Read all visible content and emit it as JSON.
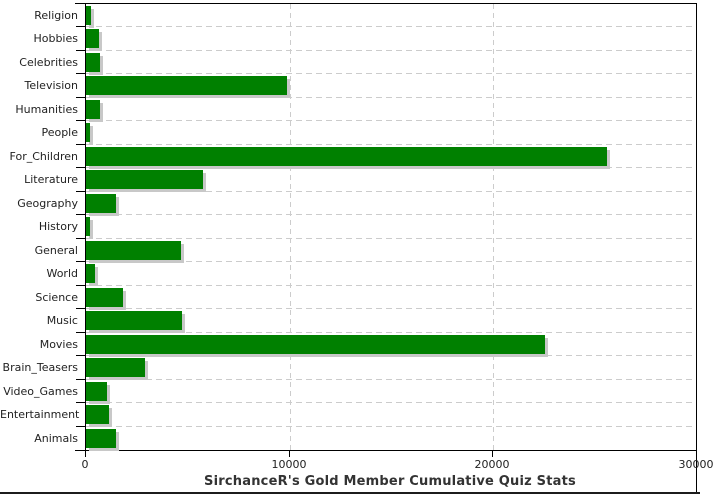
{
  "chart_data": {
    "type": "bar",
    "orientation": "horizontal",
    "title": "SirchanceR's Gold Member Cumulative Quiz Stats",
    "categories": [
      "Religion",
      "Hobbies",
      "Celebrities",
      "Television",
      "Humanities",
      "People",
      "For_Children",
      "Literature",
      "Geography",
      "History",
      "General",
      "World",
      "Science",
      "Music",
      "Movies",
      "Brain_Teasers",
      "Video_Games",
      "Entertainment",
      "Animals"
    ],
    "values": [
      230,
      650,
      690,
      9870,
      670,
      200,
      25590,
      5730,
      1460,
      180,
      4650,
      430,
      1830,
      4730,
      22530,
      2880,
      1020,
      1130,
      1460
    ],
    "xlabel": "",
    "ylabel": "",
    "xlim": [
      0,
      30000
    ],
    "x_ticks": [
      0,
      10000,
      20000,
      30000
    ],
    "x_tick_labels": [
      "0",
      "10000",
      "20000",
      "30000"
    ],
    "legend": "none",
    "grid": "dashed row separators and dashed vertical gridlines at x ticks",
    "colors": {
      "bar": "#008000",
      "bar_shadow": "#c8c8c8",
      "gridline": "#cccccc",
      "axis": "#000000",
      "tick_text": "#222222",
      "title_text": "#333333",
      "background": "#ffffff"
    }
  }
}
